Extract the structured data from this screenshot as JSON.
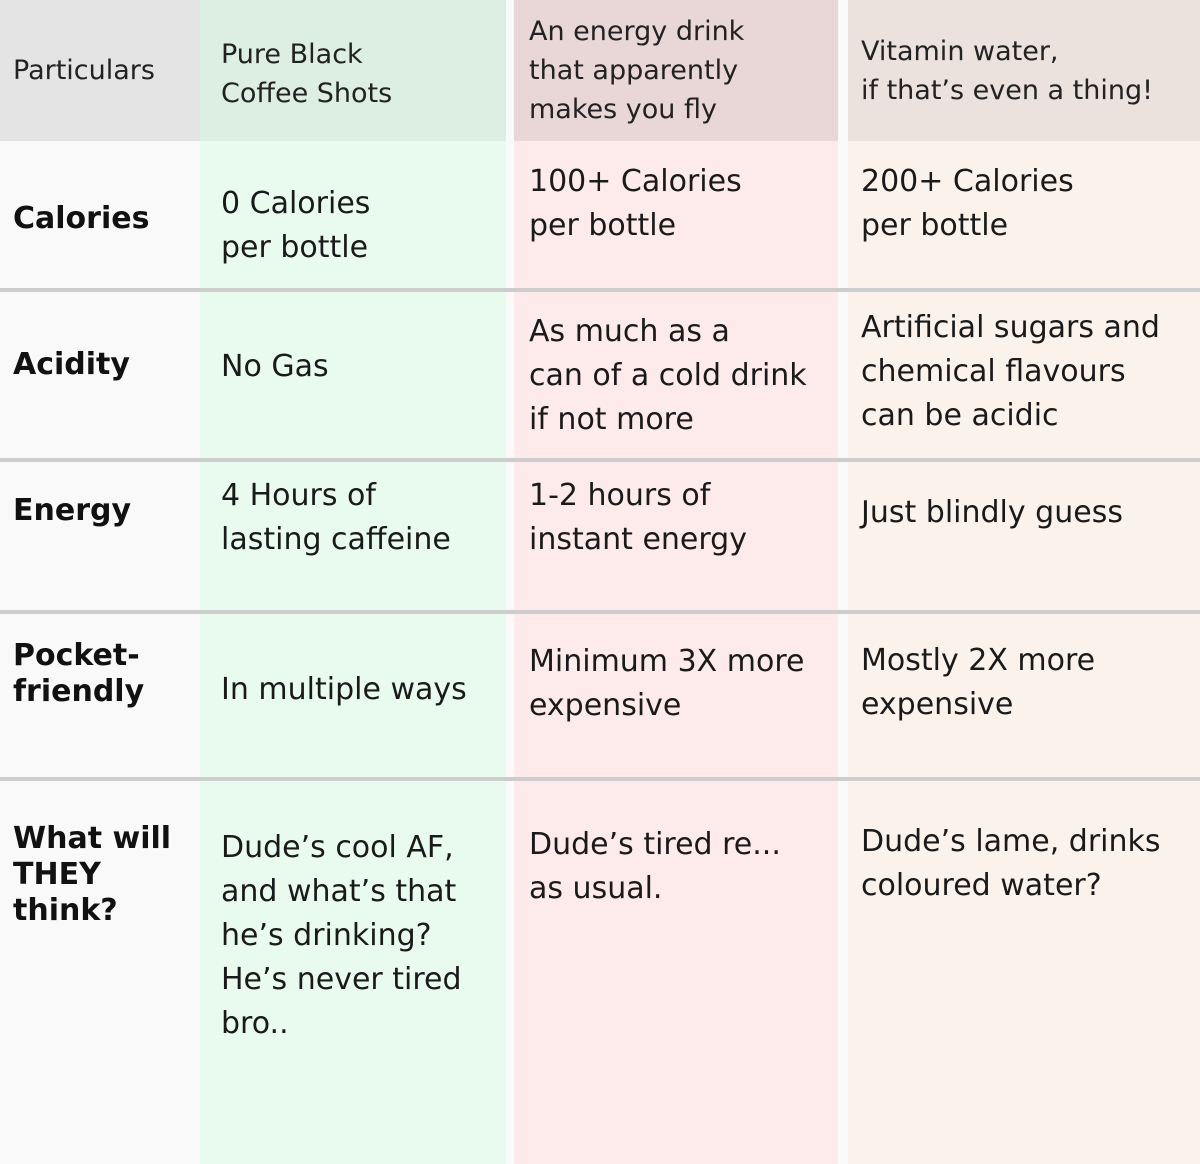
{
  "header": {
    "particulars": "Particulars",
    "coffee": "Pure Black\nCoffee Shots",
    "energy": "An energy drink\nthat apparently\nmakes you fly",
    "vitamin": "Vitamin water,\nif that’s even a thing!"
  },
  "rows": [
    {
      "label": "Calories",
      "coffee": "0 Calories\nper bottle",
      "energy": "100+ Calories\nper bottle",
      "vitamin": "200+ Calories\nper bottle"
    },
    {
      "label": "Acidity",
      "coffee": "No Gas",
      "energy": "As much as a\ncan of a cold drink\nif not more",
      "vitamin": "Artificial sugars and\nchemical flavours\ncan be acidic"
    },
    {
      "label": "Energy",
      "coffee": "4 Hours of\nlasting caffeine",
      "energy": "1-2 hours of\ninstant energy",
      "vitamin": "Just blindly guess"
    },
    {
      "label": "Pocket-\nfriendly",
      "coffee": "In multiple ways",
      "energy": "Minimum 3X more\nexpensive",
      "vitamin": "Mostly 2X more\nexpensive"
    },
    {
      "label": "What will\nTHEY think?",
      "coffee": "Dude’s cool AF,\nand what’s that\nhe’s drinking?\nHe’s never tired\nbro..",
      "energy": "Dude’s tired re...\nas usual.",
      "vitamin": "Dude’s lame, drinks\ncoloured water?"
    }
  ]
}
